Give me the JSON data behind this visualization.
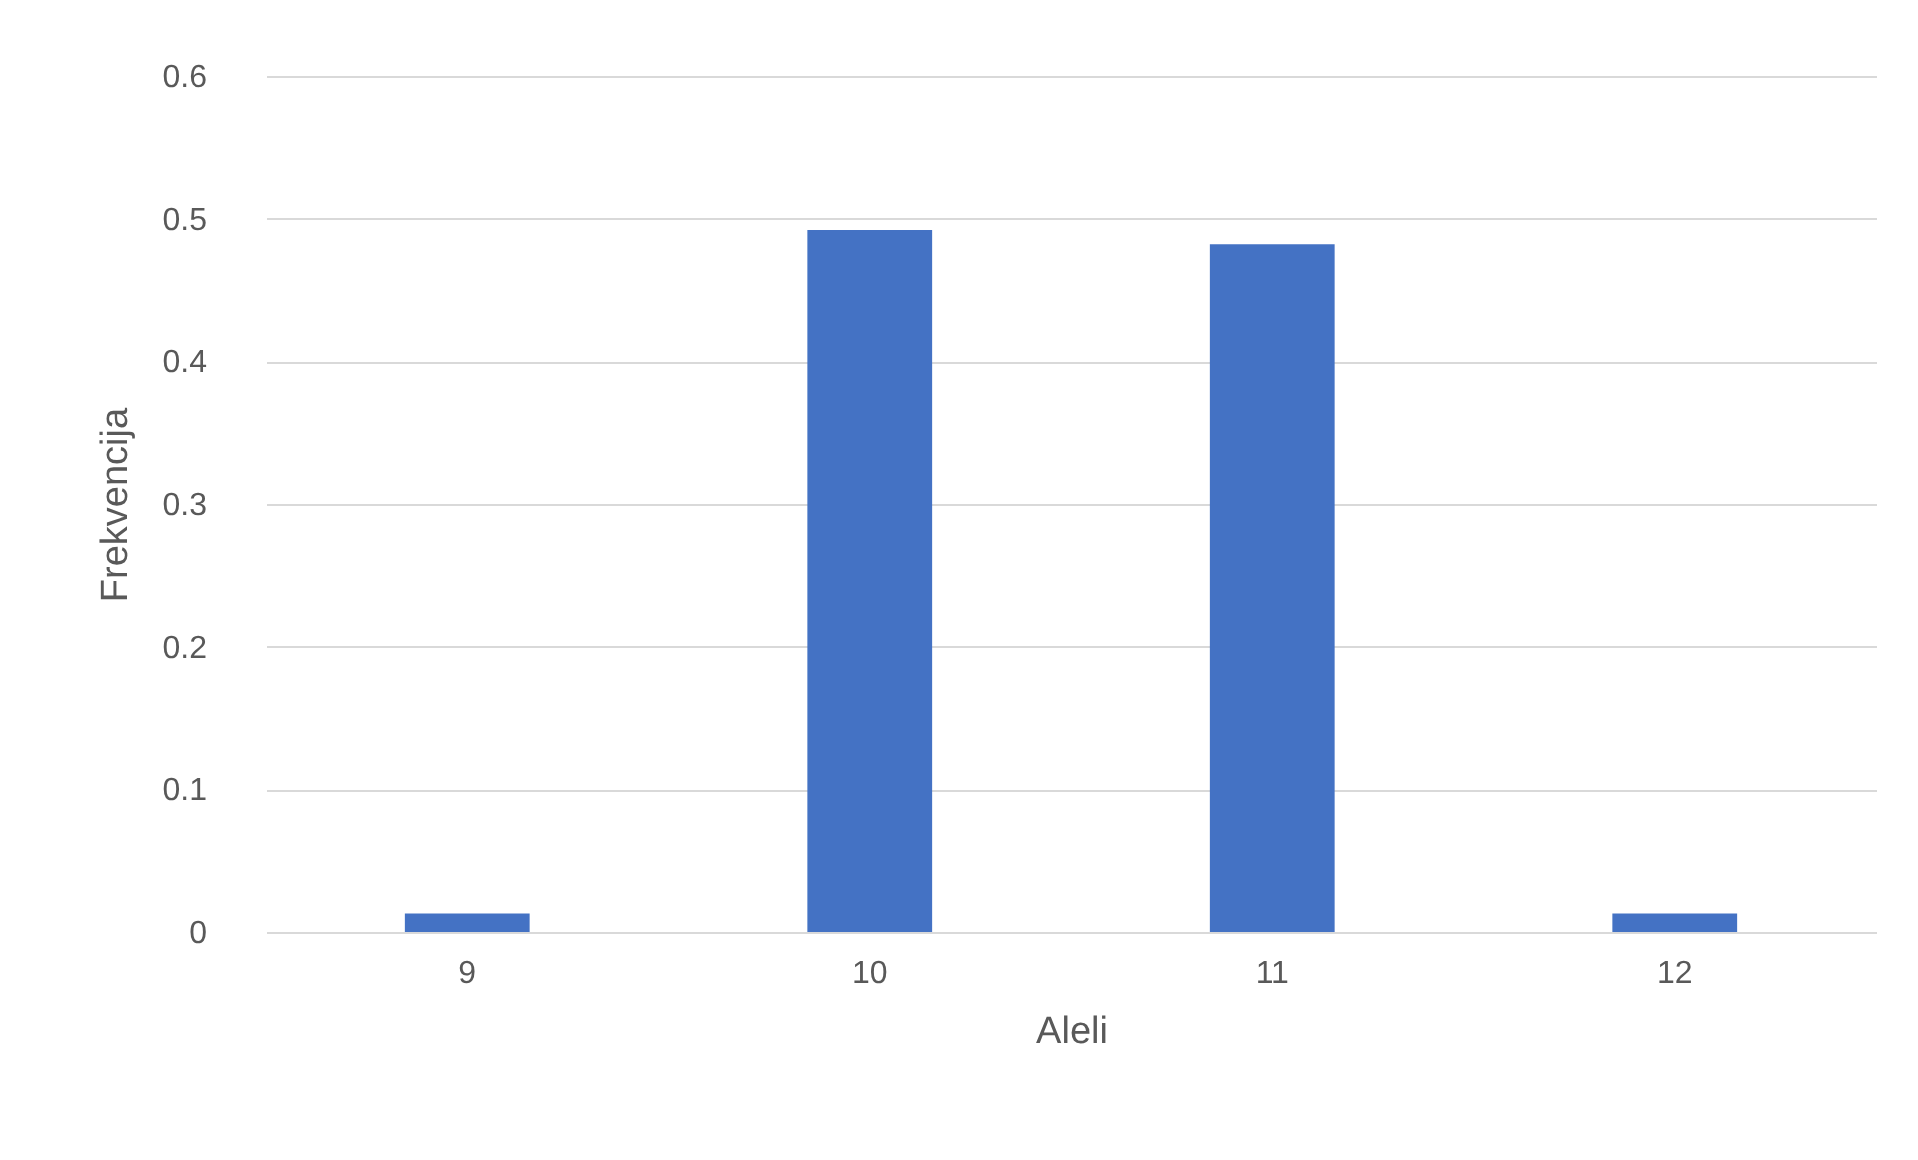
{
  "chart_data": {
    "type": "bar",
    "xlabel": "Aleli",
    "ylabel": "Frekvencija",
    "categories": [
      "9",
      "10",
      "11",
      "12"
    ],
    "values": [
      0.013,
      0.492,
      0.482,
      0.013
    ],
    "color": "#4472c4",
    "ylim": [
      0,
      0.6
    ],
    "yticks": [
      0,
      0.1,
      0.2,
      0.3,
      0.4,
      0.5,
      0.6
    ],
    "grid": "y"
  }
}
